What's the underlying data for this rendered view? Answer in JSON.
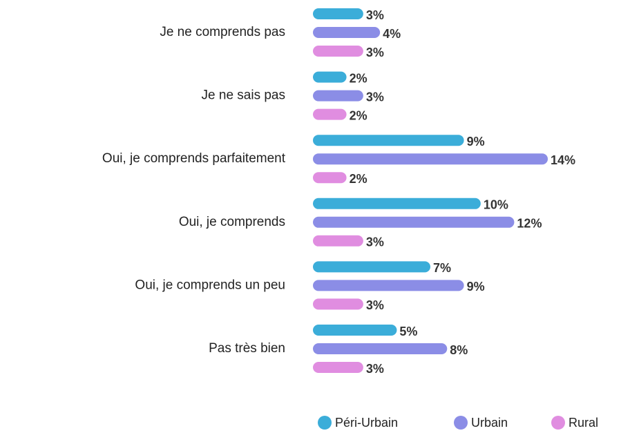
{
  "chart_data": {
    "type": "bar",
    "orientation": "horizontal",
    "categories": [
      "Je ne comprends pas",
      "Je ne sais pas",
      "Oui, je comprends parfaitement",
      "Oui, je comprends",
      "Oui, je comprends un peu",
      "Pas très bien"
    ],
    "series": [
      {
        "name": "Péri-Urbain",
        "color": "#3badd9",
        "values": [
          3,
          2,
          9,
          10,
          7,
          5
        ],
        "value_labels": [
          "3%",
          "2%",
          "9%",
          "10%",
          "7%",
          "5%"
        ]
      },
      {
        "name": "Urbain",
        "color": "#8b8de6",
        "values": [
          4,
          3,
          14,
          12,
          9,
          8
        ],
        "value_labels": [
          "4%",
          "3%",
          "14%",
          "12%",
          "9%",
          "8%"
        ]
      },
      {
        "name": "Rural",
        "color": "#e08de0",
        "values": [
          3,
          2,
          2,
          3,
          3,
          3
        ],
        "value_labels": [
          "3%",
          "2%",
          "2%",
          "3%",
          "3%",
          "3%"
        ]
      }
    ],
    "legend": "bottom-right"
  }
}
